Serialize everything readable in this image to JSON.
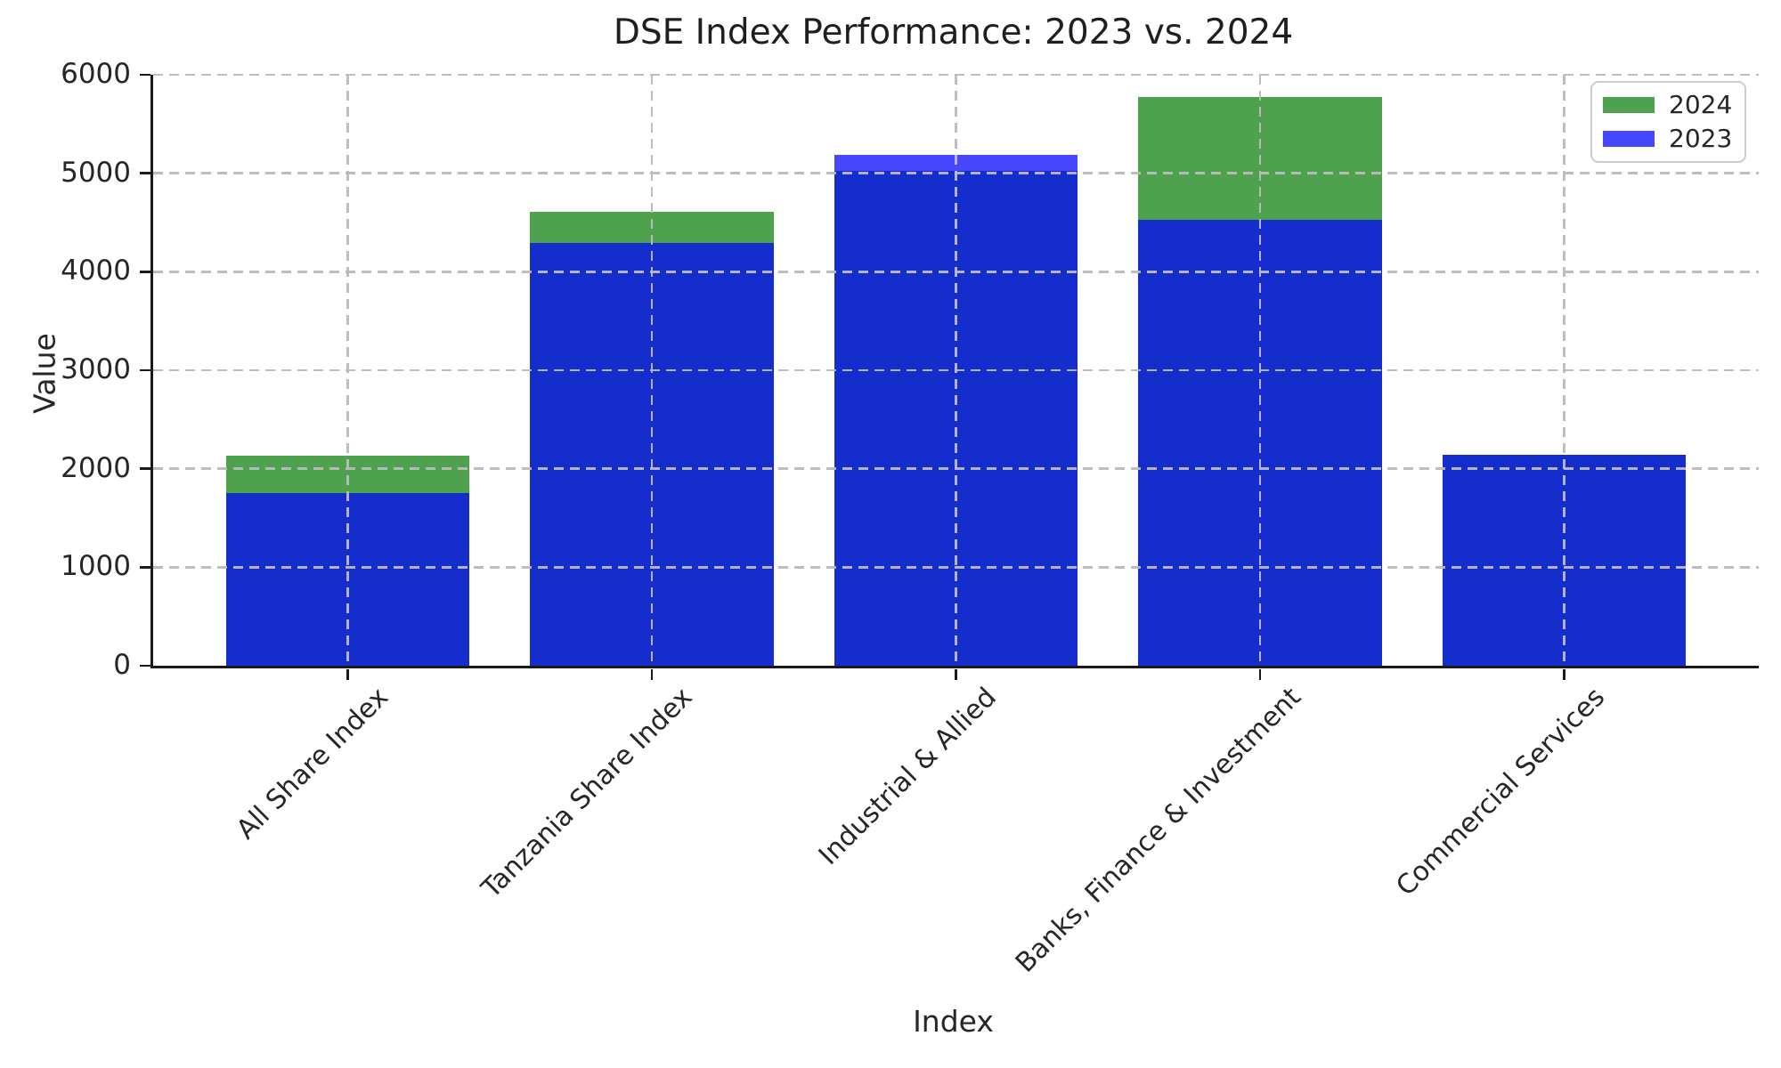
{
  "chart_data": {
    "type": "bar",
    "title": "DSE Index Performance: 2023 vs. 2024",
    "xlabel": "Index",
    "ylabel": "Value",
    "categories": [
      "All Share Index",
      "Tanzania Share Index",
      "Industrial & Allied",
      "Banks, Finance & Investment",
      "Commercial Services"
    ],
    "series": [
      {
        "name": "2024",
        "color_hex": "#228B22",
        "alpha": 0.8,
        "values": [
          2130,
          4610,
          5025,
          5770,
          2145
        ]
      },
      {
        "name": "2023",
        "color_hex": "#0000FF",
        "alpha": 0.72,
        "values": [
          1750,
          4295,
          5185,
          4530,
          2145
        ]
      }
    ],
    "bar_style": "overlapping",
    "ylim": [
      0,
      6000
    ],
    "ytick_step": 1000,
    "yticks": [
      0,
      1000,
      2000,
      3000,
      4000,
      5000,
      6000
    ],
    "grid": "dashed",
    "grid_color": "#bbbbbb",
    "legend_position": "upper right",
    "xticklabel_rotation_deg": 45
  }
}
